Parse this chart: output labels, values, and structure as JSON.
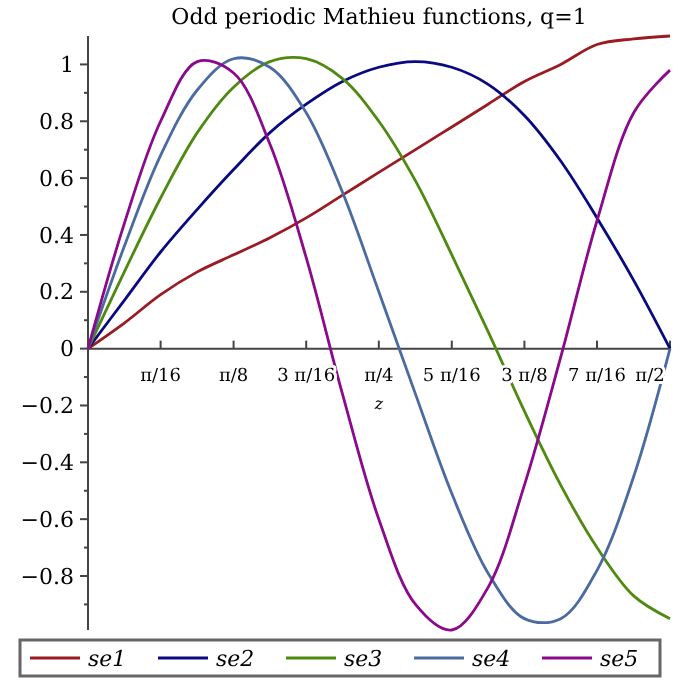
{
  "chart_data": {
    "type": "line",
    "title": "Odd periodic Mathieu functions, q=1",
    "xlabel": "z",
    "x": [
      0,
      0.098,
      0.196,
      0.295,
      0.393,
      0.491,
      0.589,
      0.687,
      0.785,
      0.884,
      0.982,
      1.08,
      1.178,
      1.276,
      1.374,
      1.473,
      1.571
    ],
    "series": [
      {
        "name": "se1",
        "color": "#9b1b22",
        "values": [
          0,
          0.09,
          0.19,
          0.27,
          0.33,
          0.39,
          0.46,
          0.54,
          0.62,
          0.7,
          0.78,
          0.86,
          0.94,
          1.0,
          1.07,
          1.09,
          1.1
        ]
      },
      {
        "name": "se2",
        "color": "#0a0a80",
        "values": [
          0,
          0.17,
          0.34,
          0.49,
          0.63,
          0.76,
          0.86,
          0.94,
          0.99,
          1.01,
          0.99,
          0.93,
          0.82,
          0.66,
          0.46,
          0.24,
          0
        ]
      },
      {
        "name": "se3",
        "color": "#4f8a10",
        "values": [
          0,
          0.27,
          0.53,
          0.76,
          0.92,
          1.01,
          1.02,
          0.95,
          0.8,
          0.59,
          0.33,
          0.06,
          -0.22,
          -0.48,
          -0.7,
          -0.87,
          -0.95
        ]
      },
      {
        "name": "se4",
        "color": "#4a6aa0",
        "values": [
          0,
          0.36,
          0.68,
          0.91,
          1.02,
          0.99,
          0.83,
          0.55,
          0.2,
          -0.16,
          -0.51,
          -0.79,
          -0.95,
          -0.95,
          -0.78,
          -0.45,
          0
        ]
      },
      {
        "name": "se5",
        "color": "#8b0a8b",
        "values": [
          0,
          0.44,
          0.8,
          1.01,
          0.97,
          0.72,
          0.32,
          -0.16,
          -0.6,
          -0.9,
          -0.99,
          -0.84,
          -0.48,
          -0.03,
          0.45,
          0.83,
          0.98
        ]
      }
    ],
    "xlim": [
      0,
      1.571
    ],
    "xticks": [
      {
        "value": 0.196,
        "label": "π/16"
      },
      {
        "value": 0.393,
        "label": "π/8"
      },
      {
        "value": 0.589,
        "label": "3 π/16"
      },
      {
        "value": 0.785,
        "label": "π/4"
      },
      {
        "value": 0.982,
        "label": "5 π/16"
      },
      {
        "value": 1.178,
        "label": "3 π/8"
      },
      {
        "value": 1.374,
        "label": "7 π/16"
      },
      {
        "value": 1.571,
        "label": "π/2"
      }
    ],
    "ylim": [
      -0.99,
      1.1
    ],
    "yticks": [
      {
        "value": -0.9,
        "label": null
      },
      {
        "value": -0.8,
        "label": "−0.8"
      },
      {
        "value": -0.7,
        "label": null
      },
      {
        "value": -0.6,
        "label": "−0.6"
      },
      {
        "value": -0.5,
        "label": null
      },
      {
        "value": -0.4,
        "label": "−0.4"
      },
      {
        "value": -0.3,
        "label": null
      },
      {
        "value": -0.2,
        "label": "−0.2"
      },
      {
        "value": -0.1,
        "label": null
      },
      {
        "value": 0,
        "label": "0"
      },
      {
        "value": 0.1,
        "label": null
      },
      {
        "value": 0.2,
        "label": "0.2"
      },
      {
        "value": 0.3,
        "label": null
      },
      {
        "value": 0.4,
        "label": "0.4"
      },
      {
        "value": 0.5,
        "label": null
      },
      {
        "value": 0.6,
        "label": "0.6"
      },
      {
        "value": 0.7,
        "label": null
      },
      {
        "value": 0.8,
        "label": "0.8"
      },
      {
        "value": 0.9,
        "label": null
      },
      {
        "value": 1,
        "label": "1"
      }
    ],
    "legend": "bottom",
    "grid": false,
    "marker": "none",
    "line_style": "solid"
  }
}
